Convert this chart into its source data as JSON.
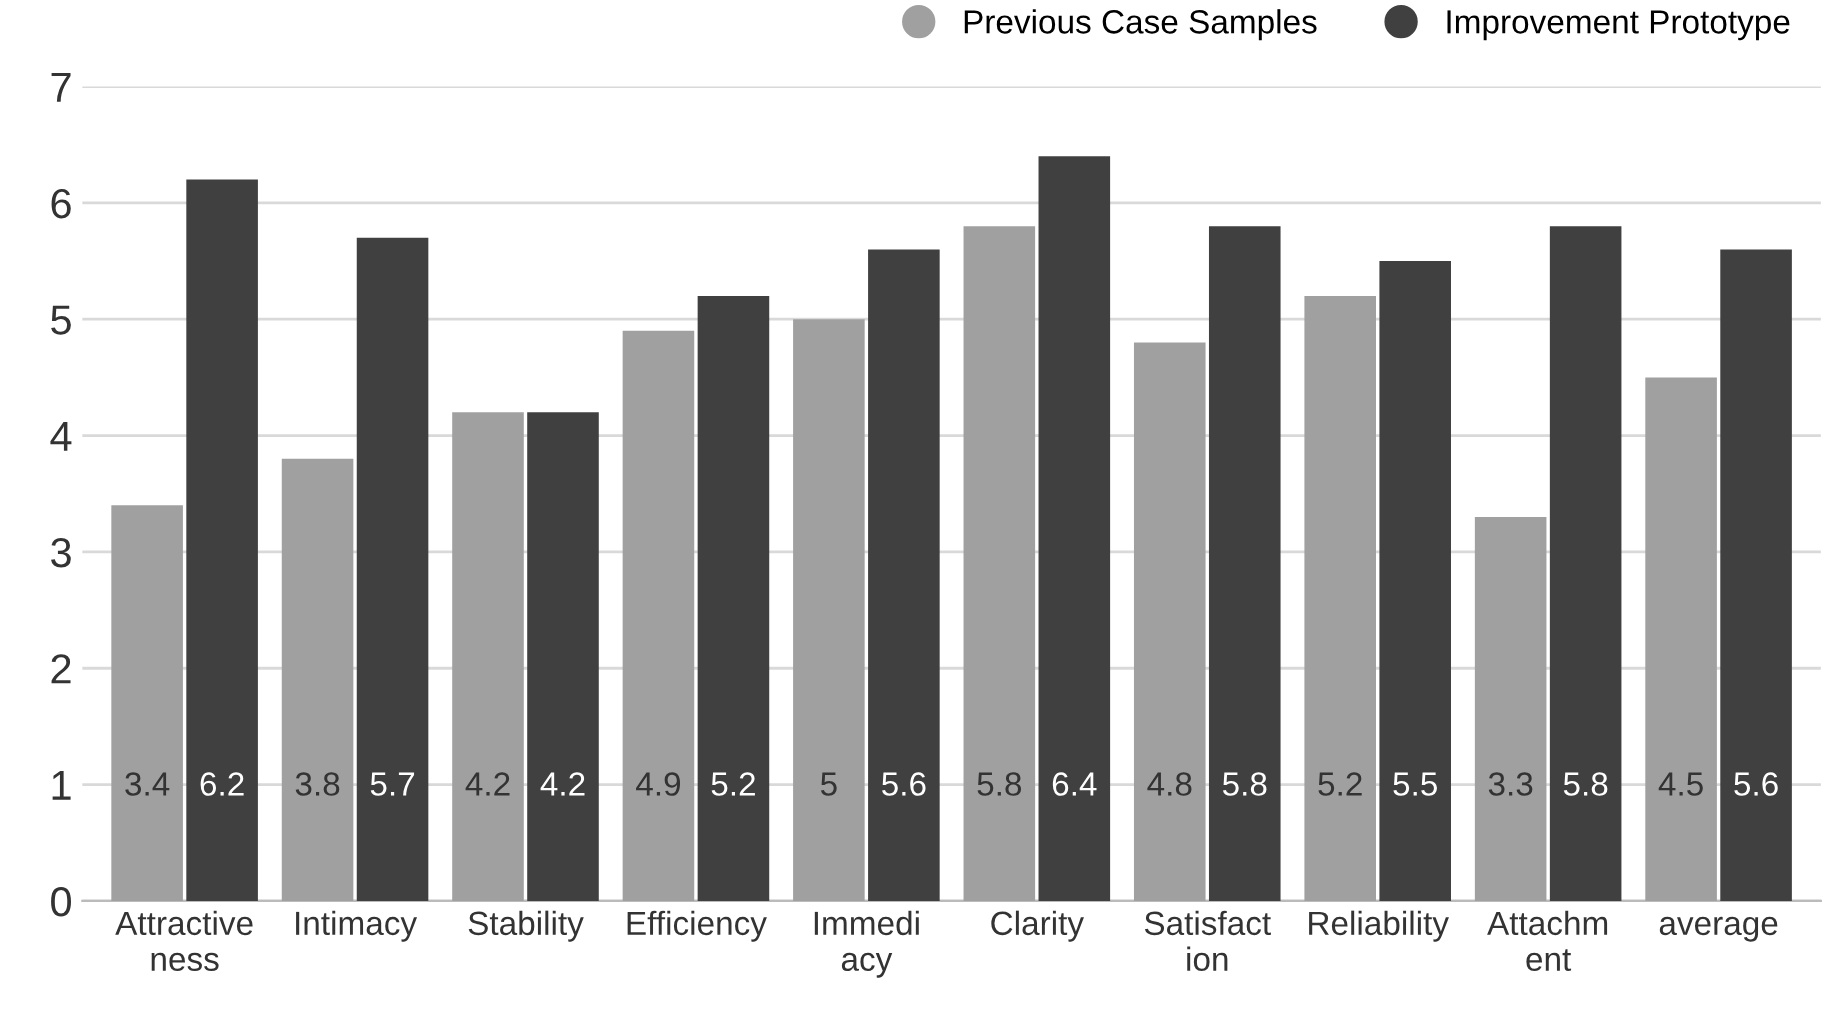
{
  "chart_data": {
    "type": "bar",
    "categories": [
      "Attractive\nness",
      "Intimacy",
      "Stability",
      "Efficiency",
      "Immedi\nacy",
      "Clarity",
      "Satisfact\nion",
      "Reliability",
      "Attachm\nent",
      "average"
    ],
    "series": [
      {
        "name": "Previous Case Samples",
        "color": "#a0a0a0",
        "values": [
          3.4,
          3.8,
          4.2,
          4.9,
          5,
          5.8,
          4.8,
          5.2,
          3.3,
          4.5
        ]
      },
      {
        "name": "Improvement Prototype",
        "color": "#404040",
        "values": [
          6.2,
          5.7,
          4.2,
          5.2,
          5.6,
          6.4,
          5.8,
          5.5,
          5.8,
          5.6
        ]
      }
    ],
    "ylim": [
      0,
      7
    ],
    "yticks": [
      0,
      1,
      2,
      3,
      4,
      5,
      6,
      7
    ],
    "grid": "y",
    "legend": "top right",
    "data_labels": true
  }
}
